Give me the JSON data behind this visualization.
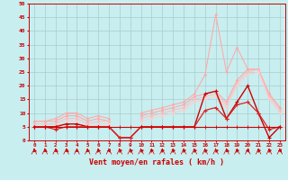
{
  "background_color": "#c8eef0",
  "grid_color": "#aacccc",
  "xlabel": "Vent moyen/en rafales ( km/h )",
  "xlabel_color": "#cc0000",
  "xlabel_fontsize": 6,
  "xtick_labels": [
    "0",
    "1",
    "2",
    "3",
    "4",
    "5",
    "6",
    "7",
    "8",
    "9",
    "10",
    "11",
    "12",
    "13",
    "14",
    "15",
    "16",
    "17",
    "18",
    "19",
    "20",
    "21",
    "22",
    "23"
  ],
  "ytick_labels": [
    "0",
    "5",
    "10",
    "15",
    "20",
    "25",
    "30",
    "35",
    "40",
    "45",
    "50"
  ],
  "ytick_values": [
    0,
    5,
    10,
    15,
    20,
    25,
    30,
    35,
    40,
    45,
    50
  ],
  "series": [
    {
      "color": "#ffaaaa",
      "linewidth": 0.8,
      "marker": "D",
      "markersize": 1.5,
      "markeredgewidth": 0.3,
      "x": [
        0,
        1,
        2,
        3,
        4,
        5,
        6,
        7,
        8,
        9,
        10,
        11,
        12,
        13,
        14,
        15,
        16,
        17,
        18,
        19,
        20,
        21,
        22,
        23
      ],
      "y": [
        7,
        7,
        8,
        10,
        10,
        8,
        9,
        8,
        null,
        null,
        10,
        11,
        12,
        13,
        14,
        17,
        24,
        46,
        25,
        34,
        26,
        26,
        17,
        12
      ]
    },
    {
      "color": "#ffaaaa",
      "linewidth": 0.8,
      "marker": "D",
      "markersize": 1.5,
      "markeredgewidth": 0.3,
      "x": [
        0,
        1,
        2,
        3,
        4,
        5,
        6,
        7,
        8,
        9,
        10,
        11,
        12,
        13,
        14,
        15,
        16,
        17,
        18,
        19,
        20,
        21,
        22,
        23
      ],
      "y": [
        7,
        7,
        7,
        9,
        9,
        7,
        8,
        7,
        null,
        null,
        9,
        10,
        11,
        12,
        13,
        16,
        17,
        18,
        14,
        22,
        26,
        26,
        17,
        12
      ]
    },
    {
      "color": "#ffbbbb",
      "linewidth": 0.7,
      "marker": "D",
      "markersize": 1.5,
      "markeredgewidth": 0.3,
      "x": [
        0,
        1,
        2,
        3,
        4,
        5,
        6,
        7,
        8,
        9,
        10,
        11,
        12,
        13,
        14,
        15,
        16,
        17,
        18,
        19,
        20,
        21,
        22,
        23
      ],
      "y": [
        6,
        6,
        6,
        8,
        8,
        6,
        7,
        7,
        null,
        null,
        8,
        9,
        10,
        11,
        12,
        15,
        16,
        17,
        13,
        21,
        25,
        26,
        16,
        11
      ]
    },
    {
      "color": "#ffcccc",
      "linewidth": 0.7,
      "marker": "D",
      "markersize": 1.5,
      "markeredgewidth": 0.3,
      "x": [
        0,
        1,
        2,
        3,
        4,
        5,
        6,
        7,
        8,
        9,
        10,
        11,
        12,
        13,
        14,
        15,
        16,
        17,
        18,
        19,
        20,
        21,
        22,
        23
      ],
      "y": [
        5,
        5,
        5,
        7,
        7,
        5,
        6,
        6,
        null,
        null,
        7,
        8,
        9,
        10,
        11,
        14,
        15,
        16,
        12,
        20,
        24,
        25,
        15,
        10
      ]
    },
    {
      "color": "#cc0000",
      "linewidth": 1.0,
      "marker": "+",
      "markersize": 3,
      "markeredgewidth": 0.8,
      "x": [
        0,
        1,
        2,
        3,
        4,
        5,
        6,
        7,
        8,
        9,
        10,
        11,
        12,
        13,
        14,
        15,
        16,
        17,
        18,
        19,
        20,
        21,
        22,
        23
      ],
      "y": [
        5,
        5,
        5,
        6,
        6,
        5,
        5,
        5,
        1,
        1,
        5,
        5,
        5,
        5,
        5,
        5,
        17,
        18,
        8,
        14,
        20,
        10,
        1,
        5
      ]
    },
    {
      "color": "#dd2222",
      "linewidth": 0.9,
      "marker": "+",
      "markersize": 3,
      "markeredgewidth": 0.8,
      "x": [
        0,
        1,
        2,
        3,
        4,
        5,
        6,
        7,
        8,
        9,
        10,
        11,
        12,
        13,
        14,
        15,
        16,
        17,
        18,
        19,
        20,
        21,
        22,
        23
      ],
      "y": [
        5,
        5,
        4,
        5,
        5,
        5,
        5,
        5,
        1,
        1,
        5,
        5,
        5,
        5,
        5,
        5,
        11,
        12,
        8,
        13,
        14,
        10,
        4,
        5
      ]
    },
    {
      "color": "#cc0000",
      "linewidth": 0.8,
      "marker": "+",
      "markersize": 2.5,
      "markeredgewidth": 0.6,
      "x": [
        0,
        1,
        2,
        3,
        4,
        5,
        6,
        7,
        8,
        9,
        10,
        11,
        12,
        13,
        14,
        15,
        16,
        17,
        18,
        19,
        20,
        21,
        22,
        23
      ],
      "y": [
        5,
        5,
        5,
        5,
        5,
        5,
        5,
        5,
        5,
        5,
        5,
        5,
        5,
        5,
        5,
        5,
        5,
        5,
        5,
        5,
        5,
        5,
        5,
        5
      ]
    }
  ],
  "wind_arrow_angles": [
    225,
    210,
    210,
    210,
    210,
    225,
    240,
    180,
    135,
    135,
    135,
    135,
    135,
    135,
    135,
    135,
    135,
    135,
    225,
    135,
    180,
    135,
    135,
    180
  ],
  "xlim": [
    -0.5,
    23.5
  ],
  "ylim": [
    0,
    50
  ]
}
